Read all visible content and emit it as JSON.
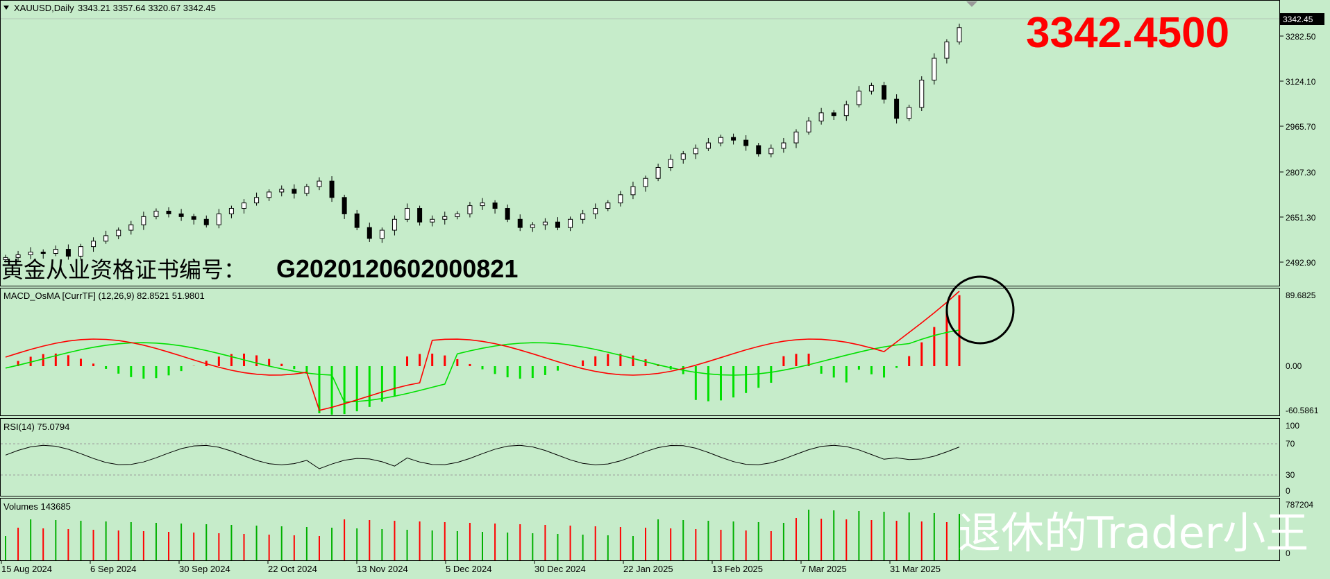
{
  "main": {
    "symbol_label": "XAUUSD,Daily",
    "ohlc_values": "3343.21 3357.64 3320.67 3342.45",
    "current_price_tag": "3342.45",
    "big_price": "3342.4500",
    "license_text": "黄金从业资格证书编号：",
    "license_number": "G2020120602000821",
    "y_ticks": [
      "3282.50",
      "3124.10",
      "2965.70",
      "2807.30",
      "2651.30",
      "2492.90"
    ],
    "y_min": 2440,
    "y_max": 3380
  },
  "macd": {
    "label": "MACD_OsMA [CurrTF] (12,26,9) 82.8521 51.9801",
    "y_ticks": [
      "89.6825",
      "0.00",
      "-60.5861"
    ],
    "colors": {
      "macd": "#ff0000",
      "signal": "#00e000",
      "hist_pos": "#ff0000",
      "hist_neg": "#00e000"
    }
  },
  "rsi": {
    "label": "RSI(14) 75.0794",
    "y_ticks": [
      "100",
      "70",
      "30",
      "0"
    ]
  },
  "volume": {
    "label": "Volumes 143685",
    "y_ticks": [
      "787204",
      "0"
    ]
  },
  "x_axis": {
    "ticks": [
      "15 Aug 2024",
      "6 Sep 2024",
      "30 Sep 2024",
      "22 Oct 2024",
      "13 Nov 2024",
      "5 Dec 2024",
      "30 Dec 2024",
      "22 Jan 2025",
      "13 Feb 2025",
      "7 Mar 2025",
      "31 Mar 2025"
    ]
  },
  "watermark": "退休的Trader小王",
  "chart_data": {
    "type": "candlestick",
    "title": "XAUUSD,Daily",
    "closes_start_to_end_approx": [
      2500,
      2510,
      2520,
      2515,
      2530,
      2505,
      2540,
      2560,
      2580,
      2600,
      2620,
      2650,
      2670,
      2660,
      2650,
      2640,
      2620,
      2660,
      2680,
      2700,
      2720,
      2740,
      2750,
      2735,
      2760,
      2780,
      2720,
      2660,
      2610,
      2570,
      2600,
      2640,
      2680,
      2630,
      2640,
      2650,
      2660,
      2690,
      2700,
      2680,
      2640,
      2610,
      2620,
      2630,
      2610,
      2640,
      2660,
      2680,
      2700,
      2730,
      2760,
      2790,
      2830,
      2860,
      2880,
      2900,
      2920,
      2940,
      2930,
      2910,
      2880,
      2900,
      2920,
      2960,
      3000,
      3030,
      3020,
      3060,
      3110,
      3130,
      3080,
      3010,
      3050,
      3150,
      3230,
      3290,
      3342.45
    ]
  }
}
